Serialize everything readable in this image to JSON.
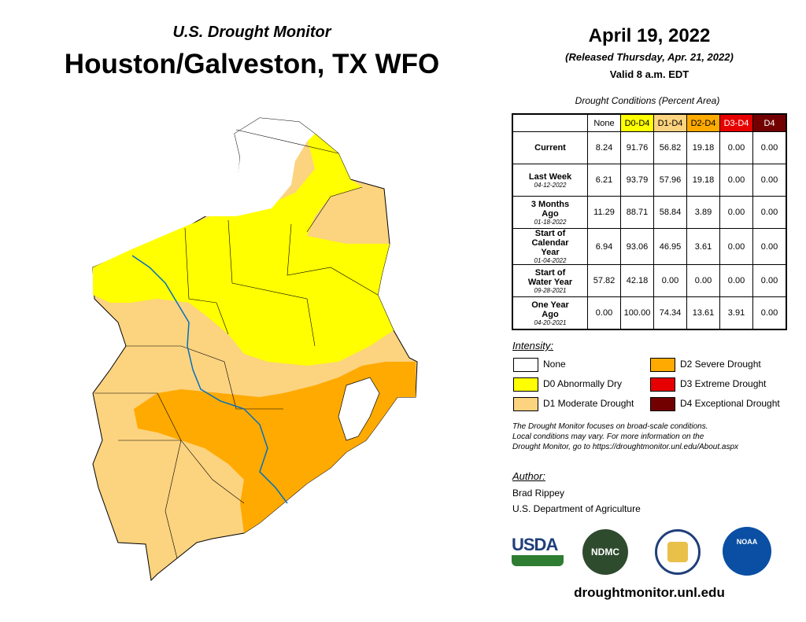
{
  "header": {
    "subtitle": "U.S. Drought Monitor",
    "title": "Houston/Galveston, TX WFO",
    "date": "April 19, 2022",
    "released": "(Released Thursday, Apr. 21, 2022)",
    "valid": "Valid 8 a.m. EDT"
  },
  "table": {
    "caption": "Drought Conditions (Percent Area)",
    "columns": [
      "None",
      "D0-D4",
      "D1-D4",
      "D2-D4",
      "D3-D4",
      "D4"
    ],
    "rows": [
      {
        "label": "Current",
        "values": [
          "8.24",
          "91.76",
          "56.82",
          "19.18",
          "0.00",
          "0.00"
        ]
      },
      {
        "label": "Last Week",
        "date": "04-12-2022",
        "values": [
          "6.21",
          "93.79",
          "57.96",
          "19.18",
          "0.00",
          "0.00"
        ]
      },
      {
        "label": "3 Months Ago",
        "date": "01-18-2022",
        "values": [
          "11.29",
          "88.71",
          "58.84",
          "3.89",
          "0.00",
          "0.00"
        ]
      },
      {
        "label": "Start of Calendar Year",
        "date": "01-04-2022",
        "values": [
          "6.94",
          "93.06",
          "46.95",
          "3.61",
          "0.00",
          "0.00"
        ]
      },
      {
        "label": "Start of Water Year",
        "date": "09-28-2021",
        "values": [
          "57.82",
          "42.18",
          "0.00",
          "0.00",
          "0.00",
          "0.00"
        ]
      },
      {
        "label": "One Year Ago",
        "date": "04-20-2021",
        "values": [
          "0.00",
          "100.00",
          "74.34",
          "13.61",
          "3.91",
          "0.00"
        ]
      }
    ]
  },
  "legend": {
    "title": "Intensity:",
    "items": [
      {
        "label": "None",
        "color": "#ffffff"
      },
      {
        "label": "D0 Abnormally Dry",
        "color": "#ffff00"
      },
      {
        "label": "D1 Moderate Drought",
        "color": "#fcd37f"
      },
      {
        "label": "D2 Severe Drought",
        "color": "#ffaa00"
      },
      {
        "label": "D3 Extreme Drought",
        "color": "#e60000"
      },
      {
        "label": "D4 Exceptional Drought",
        "color": "#730000"
      }
    ]
  },
  "notes": [
    "The Drought Monitor focuses on broad-scale conditions.",
    "Local conditions may vary. For more information on the",
    "Drought Monitor, go to https://droughtmonitor.unl.edu/About.aspx"
  ],
  "author": {
    "title": "Author:",
    "lines": [
      "Brad Rippey",
      "U.S. Department of Agriculture"
    ]
  },
  "logos": {
    "usda": "USDA",
    "ndmc": "NDMC",
    "noaa": "NOAA"
  },
  "url": "droughtmonitor.unl.edu"
}
